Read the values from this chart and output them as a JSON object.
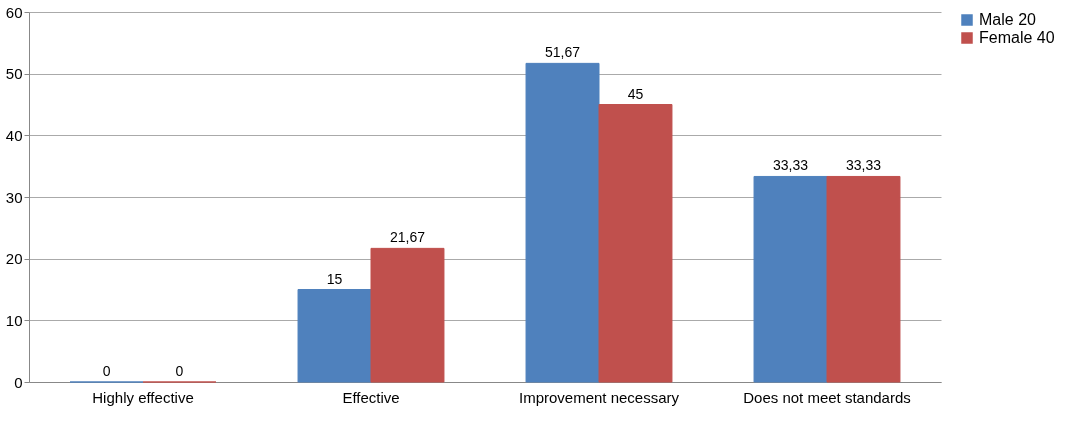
{
  "chart_data": {
    "type": "bar",
    "categories": [
      "Highly effective",
      "Effective",
      "Improvement necessary",
      "Does not meet standards"
    ],
    "series": [
      {
        "name": "Male 20",
        "color": "#4f81bd",
        "values": [
          0,
          15,
          51.67,
          33.33
        ],
        "value_labels": [
          "0",
          "15",
          "51,67",
          "33,33"
        ]
      },
      {
        "name": "Female 40",
        "color": "#c0504d",
        "values": [
          0,
          21.67,
          45,
          33.33
        ],
        "value_labels": [
          "0",
          "21,67",
          "45",
          "33,33"
        ]
      }
    ],
    "ylim": [
      0,
      60
    ],
    "yticks": [
      0,
      10,
      20,
      30,
      40,
      50,
      60
    ],
    "grid": "y",
    "legend": "right"
  }
}
